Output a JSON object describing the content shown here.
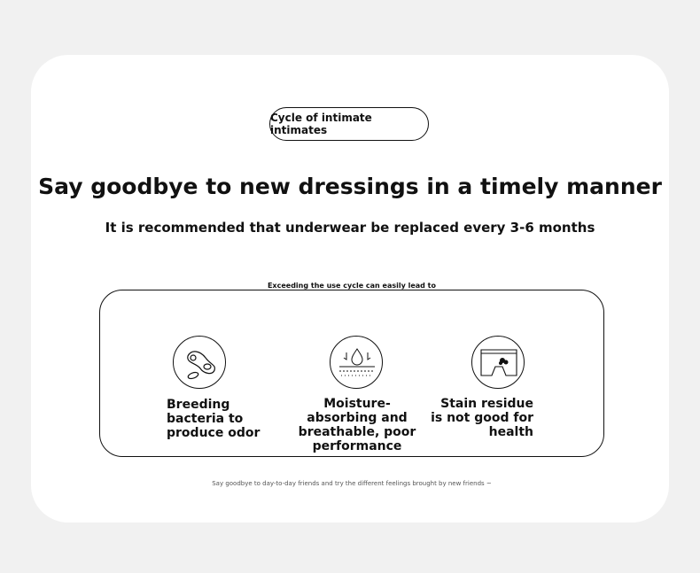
{
  "badge": "Cycle of intimate intimates",
  "title": "Say goodbye to new dressings in a timely manner",
  "subtitle": "It is recommended that underwear be replaced every 3-6 months",
  "box_label": "Exceeding the use cycle can easily lead to",
  "items": [
    {
      "icon": "bacteria-icon",
      "label": "Breeding bacteria to produce odor"
    },
    {
      "icon": "moisture-drop-icon",
      "label": "Moisture-absorbing and breathable, poor performance"
    },
    {
      "icon": "stained-underwear-icon",
      "label": "Stain residue is not good for health"
    }
  ],
  "footer": "Say goodbye to day-to-day friends and try the different feelings brought by new friends ~"
}
